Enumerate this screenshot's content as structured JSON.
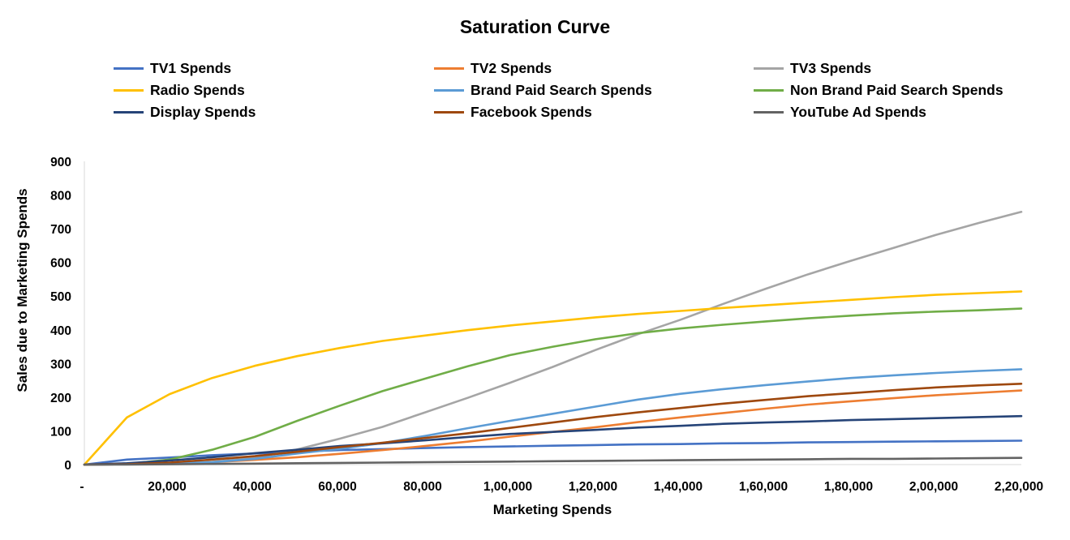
{
  "chart_data": {
    "type": "line",
    "title": "Saturation Curve",
    "xlabel": "Marketing Spends",
    "ylabel": "Sales due to Marketing Spends",
    "xlim": [
      0,
      220000
    ],
    "ylim": [
      0,
      900
    ],
    "grid": false,
    "legend_position": "top",
    "x_tick_labels": [
      "-",
      "20,000",
      "40,000",
      "60,000",
      "80,000",
      "1,00,000",
      "1,20,000",
      "1,40,000",
      "1,60,000",
      "1,80,000",
      "2,00,000",
      "2,20,000"
    ],
    "y_tick_labels": [
      "0",
      "100",
      "200",
      "300",
      "400",
      "500",
      "600",
      "700",
      "800",
      "900"
    ],
    "x": [
      0,
      10000,
      20000,
      30000,
      40000,
      50000,
      60000,
      70000,
      80000,
      90000,
      100000,
      110000,
      120000,
      130000,
      140000,
      150000,
      160000,
      170000,
      180000,
      190000,
      200000,
      210000,
      220000
    ],
    "series": [
      {
        "name": "TV1 Spends",
        "color": "#4472C4",
        "values": [
          0,
          15,
          21,
          28,
          33,
          38,
          43,
          46,
          49,
          52,
          54,
          56,
          58,
          60,
          61,
          63,
          64,
          66,
          67,
          68,
          69,
          70,
          71
        ]
      },
      {
        "name": "TV2 Spends",
        "color": "#ED7D31",
        "values": [
          0,
          1,
          3,
          7,
          14,
          22,
          32,
          43,
          55,
          68,
          83,
          97,
          111,
          126,
          140,
          153,
          166,
          178,
          188,
          197,
          206,
          213,
          220
        ]
      },
      {
        "name": "TV3 Spends",
        "color": "#A5A5A5",
        "values": [
          0,
          1,
          3,
          8,
          20,
          45,
          77,
          112,
          155,
          198,
          243,
          290,
          340,
          387,
          430,
          477,
          522,
          565,
          605,
          643,
          682,
          717,
          750
        ]
      },
      {
        "name": "Radio Spends",
        "color": "#FFC000",
        "values": [
          0,
          140,
          209,
          257,
          293,
          322,
          346,
          367,
          383,
          399,
          413,
          425,
          437,
          447,
          456,
          465,
          473,
          481,
          489,
          497,
          504,
          509,
          514
        ]
      },
      {
        "name": "Brand Paid Search Spends",
        "color": "#5B9BD5",
        "values": [
          0,
          1,
          3,
          7,
          17,
          33,
          47,
          64,
          85,
          108,
          130,
          151,
          172,
          193,
          210,
          224,
          236,
          247,
          257,
          265,
          272,
          278,
          283
        ]
      },
      {
        "name": "Non Brand Paid Search Spends",
        "color": "#70AD47",
        "values": [
          0,
          2,
          15,
          44,
          82,
          130,
          175,
          218,
          255,
          292,
          325,
          350,
          372,
          390,
          404,
          415,
          425,
          434,
          442,
          449,
          454,
          458,
          463
        ]
      },
      {
        "name": "Display Spends",
        "color": "#264478",
        "values": [
          0,
          4,
          12,
          22,
          34,
          44,
          55,
          63,
          72,
          82,
          91,
          97,
          103,
          110,
          115,
          121,
          125,
          128,
          132,
          135,
          138,
          141,
          144
        ]
      },
      {
        "name": "Facebook Spends",
        "color": "#9E480E",
        "values": [
          0,
          1,
          6,
          15,
          25,
          38,
          52,
          65,
          79,
          93,
          109,
          125,
          141,
          155,
          168,
          181,
          192,
          203,
          212,
          221,
          229,
          235,
          240
        ]
      },
      {
        "name": "YouTube Ad Spends",
        "color": "#636363",
        "values": [
          0,
          0,
          1,
          2,
          3,
          4,
          5,
          6,
          7,
          8,
          9,
          10,
          11,
          12,
          13,
          14,
          15,
          16,
          17,
          17,
          18,
          19,
          20
        ]
      }
    ]
  }
}
